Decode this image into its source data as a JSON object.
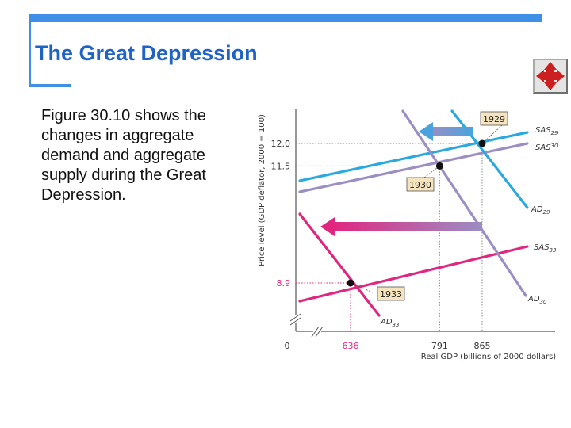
{
  "slide": {
    "title": "The Great Depression",
    "body": "Figure 30.10 shows the changes in aggregate demand and aggregate supply during the Great Depression."
  },
  "nav_button": {
    "icon": "move-arrows-icon",
    "color": "#cc1f1f"
  },
  "chart_data": {
    "type": "line",
    "title": "",
    "xlabel": "Real GDP (billions of 2000 dollars)",
    "ylabel": "Price level (GDP deflator, 2000 = 100)",
    "origin_label": "0",
    "x_ticks": [
      636,
      791,
      865
    ],
    "y_ticks": [
      8.9,
      11.5,
      12.0
    ],
    "equilibria": [
      {
        "label": "1929",
        "x": 865,
        "y": 12.0
      },
      {
        "label": "1930",
        "x": 791,
        "y": 11.5
      },
      {
        "label": "1933",
        "x": 636,
        "y": 8.9
      }
    ],
    "curves": [
      {
        "id": "SAS29",
        "base": "SAS",
        "sub": "29",
        "kind": "supply",
        "color": "#2aa9df"
      },
      {
        "id": "SAS30",
        "base": "SAS",
        "sub": "30",
        "kind": "supply",
        "color": "#9b8ec4"
      },
      {
        "id": "SAS33",
        "base": "SAS",
        "sub": "33",
        "kind": "supply",
        "color": "#e0267f"
      },
      {
        "id": "AD29",
        "base": "AD",
        "sub": "29",
        "kind": "demand",
        "color": "#2aa9df"
      },
      {
        "id": "AD30",
        "base": "AD",
        "sub": "30",
        "kind": "demand",
        "color": "#9b8ec4"
      },
      {
        "id": "AD33",
        "base": "AD",
        "sub": "33",
        "kind": "demand",
        "color": "#e0267f"
      }
    ],
    "shift_arrows": [
      {
        "from": "AD29",
        "to": "AD30",
        "colors": [
          "#4aa3df",
          "#9b8ec4"
        ]
      },
      {
        "from": "AD30",
        "to": "AD33",
        "colors": [
          "#e0267f",
          "#9b8ec4"
        ]
      }
    ],
    "grid": false,
    "legend": "none"
  }
}
